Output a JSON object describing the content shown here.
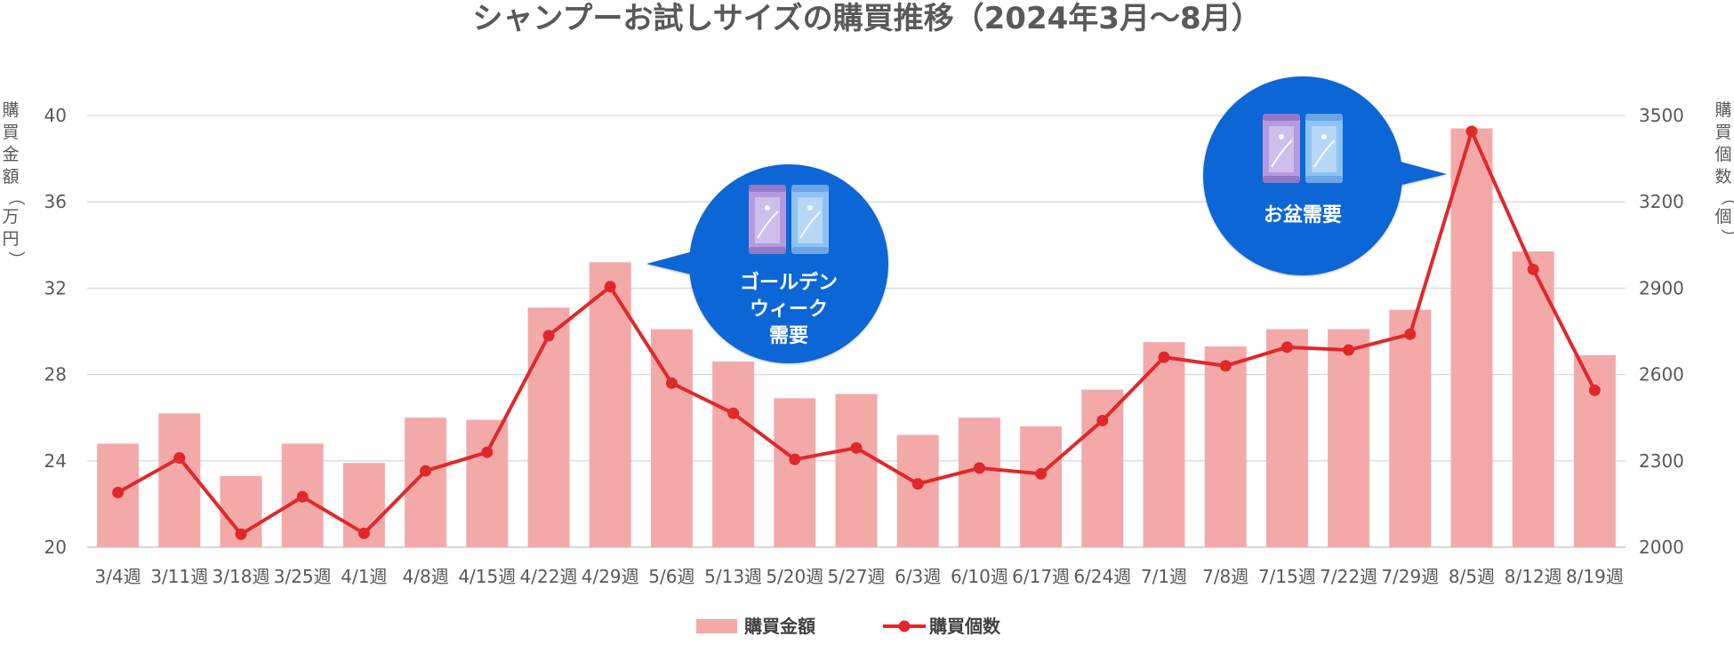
{
  "chart_data": {
    "type": "bar+line",
    "title": "シャンプーお試しサイズの購買推移（2024年3月〜8月）",
    "categories": [
      "3/4週",
      "3/11週",
      "3/18週",
      "3/25週",
      "4/1週",
      "4/8週",
      "4/15週",
      "4/22週",
      "4/29週",
      "5/6週",
      "5/13週",
      "5/20週",
      "5/27週",
      "6/3週",
      "6/10週",
      "6/17週",
      "6/24週",
      "7/1週",
      "7/8週",
      "7/15週",
      "7/22週",
      "7/29週",
      "8/5週",
      "8/12週",
      "8/19週"
    ],
    "y_left": {
      "label": "購買金額（万円）",
      "ylim": [
        20,
        40
      ],
      "ticks": [
        "20",
        "24",
        "28",
        "32",
        "36",
        "40"
      ]
    },
    "y_right": {
      "label": "購買個数（個）",
      "ylim": [
        2000,
        3500
      ],
      "ticks": [
        "2000",
        "2300",
        "2600",
        "2900",
        "3200",
        "3500"
      ]
    },
    "series": [
      {
        "name": "購買金額",
        "type": "bar",
        "axis": "left",
        "color": "#f4a9a9",
        "values": [
          24.8,
          26.2,
          23.3,
          24.8,
          23.9,
          26.0,
          25.9,
          31.1,
          33.2,
          30.1,
          28.6,
          26.9,
          27.1,
          25.2,
          26.0,
          25.6,
          27.3,
          29.5,
          29.3,
          30.1,
          30.1,
          31.0,
          39.4,
          33.7,
          28.9
        ]
      },
      {
        "name": "購買個数",
        "type": "line",
        "axis": "right",
        "color": "#e0282b",
        "values": [
          2190,
          2310,
          2045,
          2175,
          2048,
          2265,
          2330,
          2735,
          2905,
          2570,
          2465,
          2305,
          2345,
          2220,
          2275,
          2255,
          2440,
          2660,
          2630,
          2695,
          2685,
          2740,
          3445,
          2965,
          2545
        ]
      }
    ],
    "annotations": [
      {
        "category": "4/29週",
        "lines": [
          "ゴールデン",
          "ウィーク",
          "需要"
        ]
      },
      {
        "category": "8/5週",
        "lines": [
          "お盆需要"
        ]
      }
    ],
    "grid": true,
    "legend_position": "bottom-center",
    "accent_color": "#0b66d6"
  }
}
